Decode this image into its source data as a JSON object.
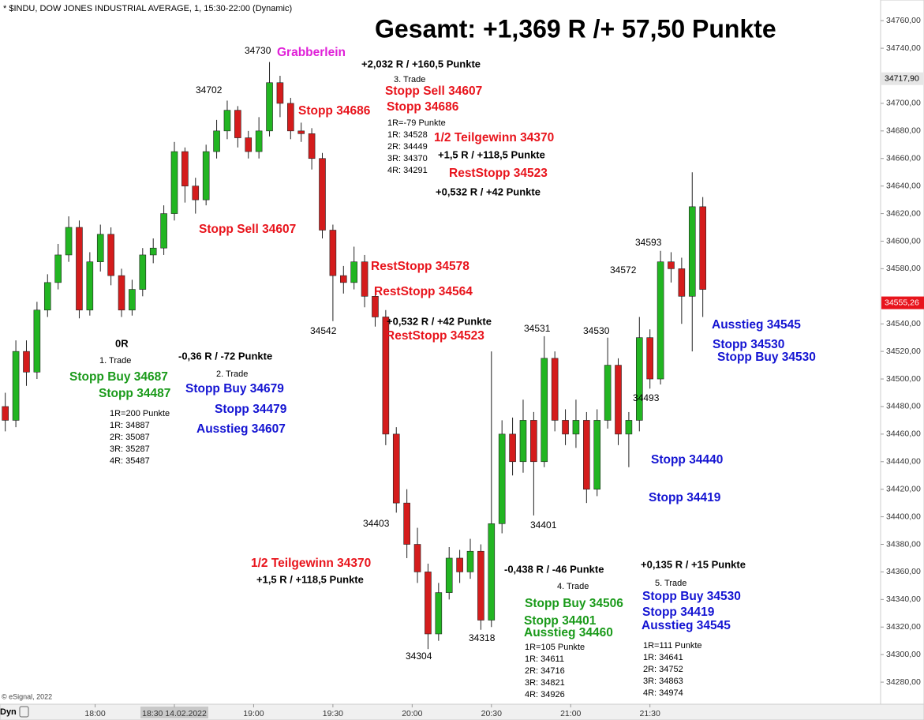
{
  "chart_data": {
    "type": "candlestick",
    "header": "* $INDU, DOW JONES INDUSTRIAL AVERAGE, 1, 15:30-22:00 (Dynamic)",
    "title": "Gesamt: +1,369 R /+ 57,50 Punkte",
    "copyright": "© eSignal, 2022",
    "mode": "Dyn",
    "up_color": "#22b522",
    "down_color": "#d41c1c",
    "xlim": [
      1044,
      1377
    ],
    "ylim": [
      34264,
      34775
    ],
    "xticks": [
      {
        "value": 1080,
        "label": "18:00"
      },
      {
        "value": 1110,
        "label": "18:30 14.02.2022"
      },
      {
        "value": 1140,
        "label": "19:00"
      },
      {
        "value": 1170,
        "label": "19:30"
      },
      {
        "value": 1200,
        "label": "20:00"
      },
      {
        "value": 1230,
        "label": "20:30"
      },
      {
        "value": 1260,
        "label": "21:00"
      },
      {
        "value": 1290,
        "label": "21:30"
      }
    ],
    "yticks": [
      {
        "value": 34760,
        "label": "34760,00"
      },
      {
        "value": 34740,
        "label": "34740,00"
      },
      {
        "value": 34700,
        "label": "34700,00"
      },
      {
        "value": 34680,
        "label": "34680,00"
      },
      {
        "value": 34660,
        "label": "34660,00"
      },
      {
        "value": 34640,
        "label": "34640,00"
      },
      {
        "value": 34620,
        "label": "34620,00"
      },
      {
        "value": 34600,
        "label": "34600,00"
      },
      {
        "value": 34580,
        "label": "34580,00"
      },
      {
        "value": 34540,
        "label": "34540,00"
      },
      {
        "value": 34520,
        "label": "34520,00"
      },
      {
        "value": 34500,
        "label": "34500,00"
      },
      {
        "value": 34480,
        "label": "34480,00"
      },
      {
        "value": 34460,
        "label": "34460,00"
      },
      {
        "value": 34440,
        "label": "34440,00"
      },
      {
        "value": 34420,
        "label": "34420,00"
      },
      {
        "value": 34400,
        "label": "34400,00"
      },
      {
        "value": 34380,
        "label": "34380,00"
      },
      {
        "value": 34360,
        "label": "34360,00"
      },
      {
        "value": 34340,
        "label": "34340,00"
      },
      {
        "value": 34320,
        "label": "34320,00"
      },
      {
        "value": 34300,
        "label": "34300,00"
      },
      {
        "value": 34280,
        "label": "34280,00"
      }
    ],
    "price_markers": [
      {
        "value": 34717.9,
        "label": "34717,90",
        "color": "#e6e6e6"
      },
      {
        "value": 34555.26,
        "label": "34555,26",
        "color": "#e8141c"
      }
    ],
    "x": [
      1046,
      1050,
      1054,
      1058,
      1062,
      1066,
      1070,
      1074,
      1078,
      1082,
      1086,
      1090,
      1094,
      1098,
      1102,
      1106,
      1110,
      1114,
      1118,
      1122,
      1126,
      1130,
      1134,
      1138,
      1142,
      1146,
      1150,
      1154,
      1158,
      1162,
      1166,
      1170,
      1174,
      1178,
      1182,
      1186,
      1190,
      1194,
      1198,
      1202,
      1206,
      1210,
      1214,
      1218,
      1222,
      1226,
      1230,
      1234,
      1238,
      1242,
      1246,
      1250,
      1254,
      1258,
      1262,
      1266,
      1270,
      1274,
      1278,
      1282,
      1286,
      1290,
      1294,
      1298,
      1302,
      1306,
      1310
    ],
    "open": [
      34480,
      34470,
      34520,
      34505,
      34550,
      34570,
      34590,
      34610,
      34550,
      34585,
      34605,
      34575,
      34550,
      34565,
      34590,
      34595,
      34620,
      34665,
      34640,
      34630,
      34665,
      34680,
      34695,
      34675,
      34665,
      34680,
      34715,
      34700,
      34680,
      34678,
      34660,
      34608,
      34575,
      34570,
      34585,
      34560,
      34545,
      34460,
      34410,
      34380,
      34360,
      34315,
      34345,
      34370,
      34360,
      34375,
      34325,
      34395,
      34460,
      34440,
      34470,
      34440,
      34515,
      34470,
      34460,
      34470,
      34420,
      34470,
      34510,
      34460,
      34470,
      34530,
      34500,
      34585,
      34580,
      34560,
      34625
    ],
    "high": [
      34490,
      34528,
      34528,
      34556,
      34576,
      34598,
      34618,
      34615,
      34592,
      34612,
      34610,
      34580,
      34572,
      34595,
      34602,
      34626,
      34672,
      34668,
      34646,
      34670,
      34688,
      34702,
      34698,
      34680,
      34690,
      34730,
      34720,
      34704,
      34686,
      34682,
      34664,
      34612,
      34582,
      34596,
      34590,
      34566,
      34550,
      34465,
      34420,
      34392,
      34366,
      34352,
      34378,
      34376,
      34384,
      34380,
      34520,
      34470,
      34472,
      34485,
      34476,
      34531,
      34520,
      34478,
      34485,
      34476,
      34478,
      34530,
      34515,
      34476,
      34545,
      34536,
      34593,
      34592,
      34588,
      34650,
      34632
    ],
    "low": [
      34462,
      34465,
      34495,
      34500,
      34545,
      34565,
      34585,
      34544,
      34546,
      34578,
      34568,
      34545,
      34546,
      34560,
      34584,
      34590,
      34615,
      34628,
      34620,
      34626,
      34660,
      34674,
      34668,
      34660,
      34660,
      34676,
      34690,
      34674,
      34672,
      34652,
      34602,
      34542,
      34562,
      34565,
      34552,
      34538,
      34452,
      34403,
      34370,
      34352,
      34304,
      34310,
      34340,
      34352,
      34355,
      34318,
      34320,
      34388,
      34430,
      34432,
      34401,
      34436,
      34462,
      34452,
      34450,
      34410,
      34415,
      34464,
      34452,
      34436,
      34462,
      34493,
      34496,
      34570,
      34540,
      34520,
      34545
    ],
    "close": [
      34470,
      34520,
      34505,
      34550,
      34570,
      34590,
      34610,
      34550,
      34585,
      34605,
      34575,
      34550,
      34565,
      34590,
      34595,
      34620,
      34665,
      34640,
      34630,
      34665,
      34680,
      34695,
      34675,
      34665,
      34680,
      34715,
      34700,
      34680,
      34678,
      34660,
      34608,
      34575,
      34570,
      34585,
      34560,
      34545,
      34460,
      34410,
      34380,
      34360,
      34315,
      34345,
      34370,
      34360,
      34375,
      34325,
      34395,
      34460,
      34440,
      34470,
      34440,
      34515,
      34470,
      34460,
      34470,
      34420,
      34470,
      34510,
      34460,
      34470,
      34530,
      34500,
      34585,
      34580,
      34560,
      34625,
      34565
    ],
    "annotations": [
      "Grabberlein",
      "+2,032 R / +160,5 Punkte",
      "3. Trade",
      "Stopp Sell 34607",
      "Stopp 34686",
      "Stopp 34686",
      "1R=-79 Punkte",
      "1R: 34528",
      "2R: 34449",
      "3R: 34370",
      "4R: 34291",
      "1/2 Teilgewinn 34370",
      "+1,5 R / +118,5 Punkte",
      "RestStopp 34523",
      "+0,532 R / +42 Punkte",
      "Stopp Sell 34607",
      "RestStopp 34578",
      "RestStopp 34564",
      "+0,532 R / +42 Punkte",
      "RestStopp 34523",
      "0R",
      "1. Trade",
      "Stopp Buy 34687",
      "Stopp 34487",
      "1R=200 Punkte",
      "1R: 34887",
      "2R: 35087",
      "3R: 35287",
      "4R: 35487",
      "-0,36 R / -72 Punkte",
      "2. Trade",
      "Stopp Buy 34679",
      "Stopp 34479",
      "Ausstieg 34607",
      "1/2 Teilgewinn 34370",
      "+1,5 R / +118,5 Punkte",
      "-0,438 R / -46 Punkte",
      "4. Trade",
      "Stopp Buy 34506",
      "Stopp 34401",
      "Ausstieg 34460",
      "1R=105 Punkte",
      "1R: 34611",
      "2R: 34716",
      "3R: 34821",
      "4R: 34926",
      "+0,135 R / +15 Punkte",
      "5. Trade",
      "Stopp Buy 34530",
      "Stopp 34419",
      "Ausstieg 34545",
      "1R=111 Punkte",
      "1R: 34641",
      "2R: 34752",
      "3R: 34863",
      "4R: 34974",
      "Ausstieg 34545",
      "Stopp 34530",
      "Stopp Buy 34530",
      "Stopp 34440",
      "Stopp 34419",
      "34730",
      "34702",
      "34542",
      "34403",
      "34304",
      "34318",
      "34401",
      "34531",
      "34530",
      "34493",
      "34572",
      "34593"
    ]
  }
}
